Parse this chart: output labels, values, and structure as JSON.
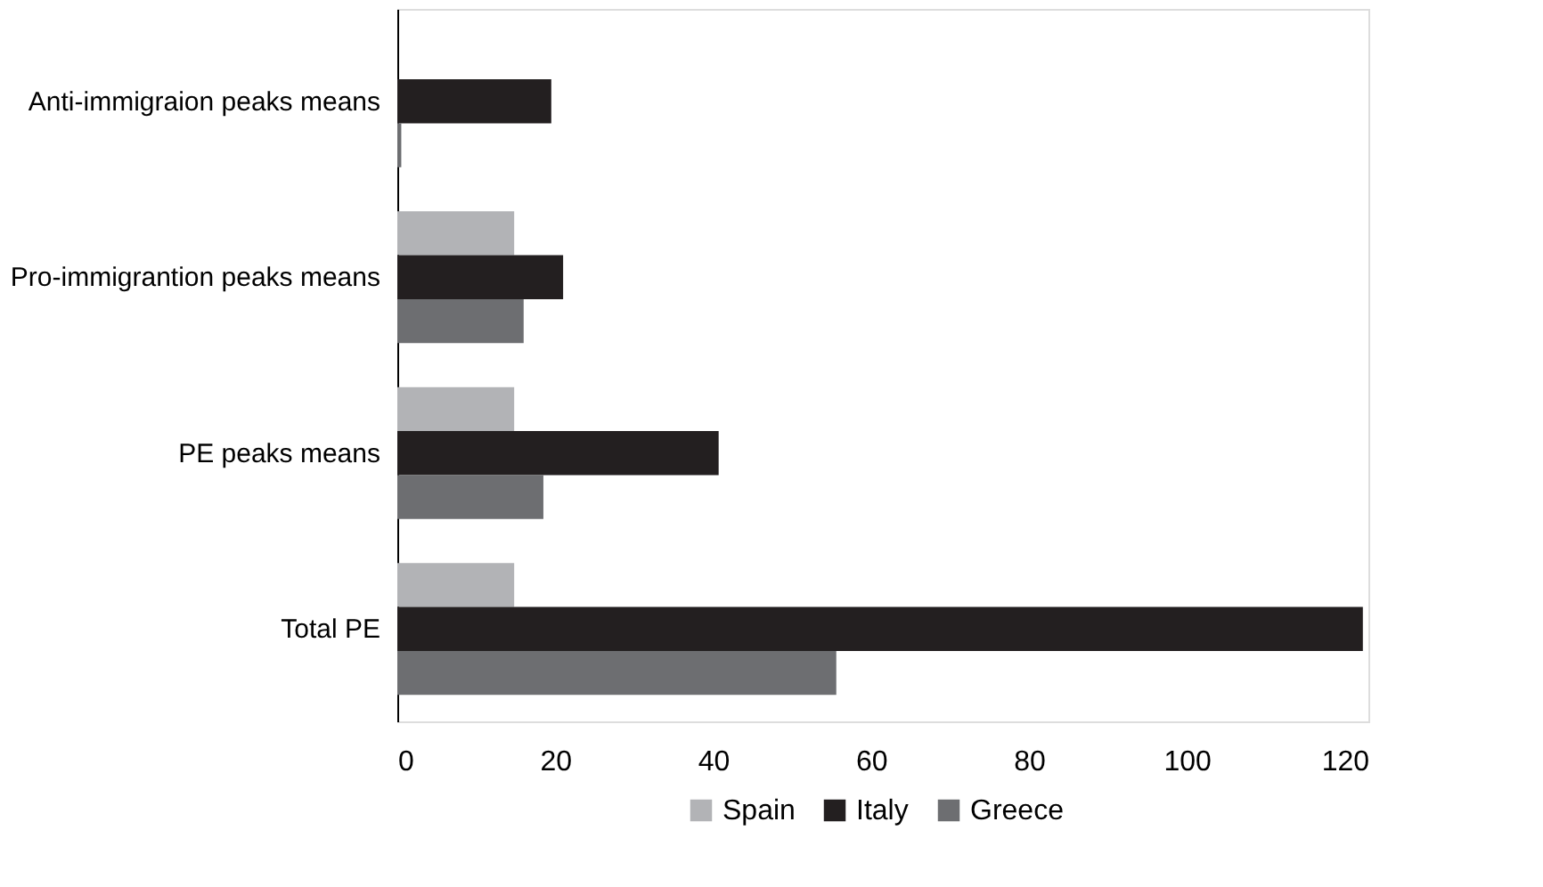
{
  "chart_data": {
    "type": "bar",
    "orientation": "horizontal",
    "categories": [
      "Anti-immigraion peaks means",
      "Pro-immigrantion peaks means",
      "PE peaks means",
      "Total PE"
    ],
    "series": [
      {
        "name": "Spain",
        "color": "#b2b3b6",
        "values": [
          0,
          14.8,
          14.8,
          14.8
        ]
      },
      {
        "name": "Italy",
        "color": "#231f20",
        "values": [
          19.5,
          21,
          40.7,
          122.3
        ]
      },
      {
        "name": "Greece",
        "color": "#6d6e71",
        "values": [
          0.5,
          16,
          18.5,
          55.6
        ]
      }
    ],
    "xlim": [
      0,
      123
    ],
    "xticks": [
      0,
      20,
      40,
      60,
      80,
      100,
      120
    ],
    "grid": false,
    "legend": "bottom"
  }
}
